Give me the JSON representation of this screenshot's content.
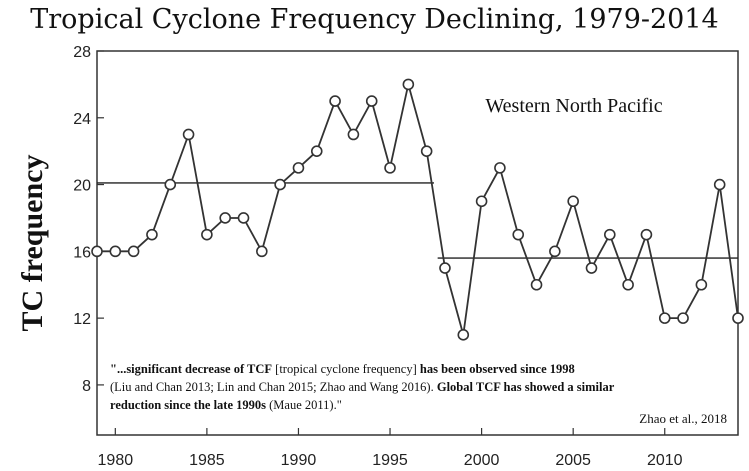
{
  "chart_data": {
    "type": "line",
    "title": "Tropical Cyclone Frequency Declining, 1979-2014",
    "ylabel": "TC frequency",
    "xlabel": "",
    "xlim": [
      1979,
      2014
    ],
    "ylim": [
      5,
      28
    ],
    "xticks": [
      1980,
      1985,
      1990,
      1995,
      2000,
      2005,
      2010
    ],
    "yticks": [
      8,
      12,
      16,
      20,
      24,
      28
    ],
    "grid": false,
    "series": [
      {
        "x": [
          1979,
          1980,
          1981,
          1982,
          1983,
          1984,
          1985,
          1986,
          1987,
          1988,
          1989,
          1990,
          1991,
          1992,
          1993,
          1994,
          1995,
          1996,
          1997,
          1998,
          1999,
          2000,
          2001,
          2002,
          2003,
          2004,
          2005,
          2006,
          2007,
          2008,
          2009,
          2010,
          2011,
          2012,
          2013,
          2014
        ],
        "y": [
          16,
          16,
          16,
          17,
          20,
          23,
          17,
          18,
          18,
          16,
          20,
          21,
          22,
          25,
          23,
          25,
          21,
          26,
          22,
          15,
          11,
          19,
          21,
          17,
          14,
          16,
          19,
          15,
          17,
          14,
          17,
          12,
          12,
          14,
          20,
          12
        ]
      }
    ],
    "mean_lines": [
      {
        "x_start": 1979,
        "x_end": 1997.4,
        "y": 20.1
      },
      {
        "x_start": 1997.6,
        "x_end": 2014,
        "y": 15.6
      }
    ],
    "region_label": "Western North Pacific",
    "annotation": {
      "part1_bold": "\"...significant decrease of TCF",
      "part2": " [tropical cyclone frequency] ",
      "part3_bold": "has been observed since 1998",
      "part4": "(Liu and Chan 2013; Lin and Chan 2015; Zhao and Wang 2016). ",
      "part5_bold": "Global TCF has showed a similar reduction since the late 1990s",
      "part6": " (Maue 2011).\""
    },
    "citation": "Zhao et al., 2018"
  }
}
